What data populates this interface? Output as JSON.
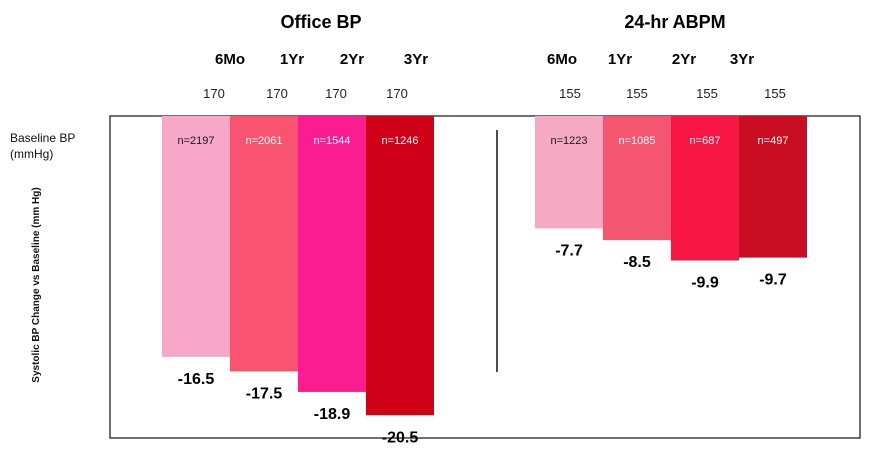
{
  "chart_data": {
    "type": "bar",
    "ylabel": "Systolic BP Change vs Baseline (mm Hg)",
    "row_label": [
      "Baseline BP",
      "(mmHg)"
    ],
    "ylim": [
      -22,
      0
    ],
    "panels": [
      {
        "title": "Office BP",
        "categories": [
          "6Mo",
          "1Yr",
          "2Yr",
          "3Yr"
        ],
        "baseline_bp": [
          "170",
          "170",
          "170",
          "170"
        ],
        "n": [
          "n=2197",
          "n=2061",
          "n=1544",
          "n=1246"
        ],
        "values": [
          -16.5,
          -17.5,
          -18.9,
          -20.5
        ],
        "value_labels": [
          "-16.5",
          "-17.5",
          "-18.9",
          "-20.5"
        ],
        "colors": [
          "#f7a8c9",
          "#f8546f",
          "#fb1d8f",
          "#d00018"
        ]
      },
      {
        "title": "24-hr ABPM",
        "categories": [
          "6Mo",
          "1Yr",
          "2Yr",
          "3Yr"
        ],
        "baseline_bp": [
          "155",
          "155",
          "155",
          "155"
        ],
        "n": [
          "n=1223",
          "n=1085",
          "n=687",
          "n=497"
        ],
        "values": [
          -7.7,
          -8.5,
          -9.9,
          -9.7
        ],
        "value_labels": [
          "-7.7",
          "-8.5",
          "-9.9",
          "-9.7"
        ],
        "colors": [
          "#f5a9c3",
          "#f5566f",
          "#f71544",
          "#c90d22"
        ]
      }
    ]
  }
}
